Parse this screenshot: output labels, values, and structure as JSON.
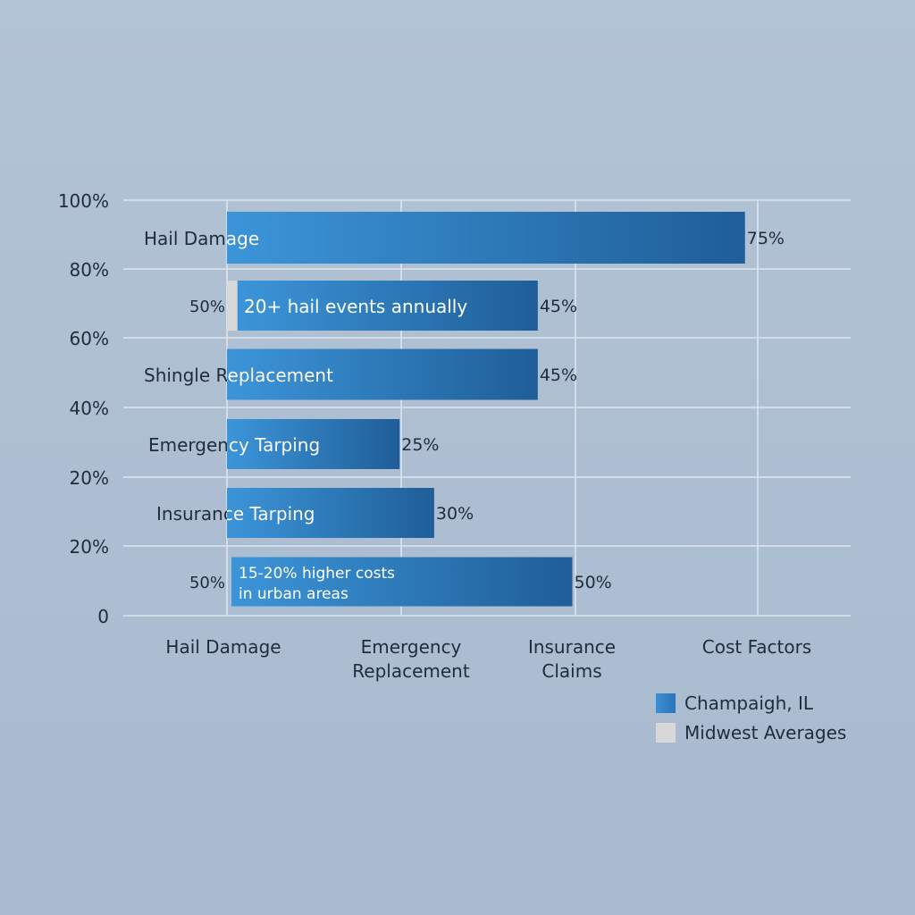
{
  "chart_data": {
    "type": "bar",
    "orientation": "horizontal",
    "grid": true,
    "legend_position": "bottom-right",
    "y_tick_labels": [
      "100%",
      "80%",
      "60%",
      "40%",
      "20%",
      "20%",
      "0"
    ],
    "x_categories": [
      "Hail Damage",
      "Emergency\nReplacement",
      "Insurance\nClaims",
      "Cost Factors"
    ],
    "bars": [
      {
        "label": "Hail Damage",
        "value": 75,
        "value_label": "75%"
      },
      {
        "label": "20+ hail events annually",
        "value": 45,
        "value_label": "45%",
        "left_label": "50%",
        "has_midwest": true
      },
      {
        "label": "Shingle Replacement",
        "value": 45,
        "value_label": "45%"
      },
      {
        "label": "Emergency Tarping",
        "value": 25,
        "value_label": "25%"
      },
      {
        "label": "Insurance Tarping",
        "value": 30,
        "value_label": "30%"
      },
      {
        "label": "15-20% higher costs\nin urban areas",
        "value": 50,
        "value_label": "50%",
        "left_label": "50%"
      }
    ],
    "legend": [
      {
        "name": "Champaigh, IL",
        "color": "#3a8fd6"
      },
      {
        "name": "Midwest Averages",
        "color": "#d8d8d8"
      }
    ],
    "colors": {
      "primary_start": "#3c95d9",
      "primary_end": "#1f5e98",
      "midwest": "#d8d8d8",
      "grid": "#dbe5ef",
      "axis_text": "#1f2d3b",
      "bar_text": "#ffffff"
    }
  }
}
